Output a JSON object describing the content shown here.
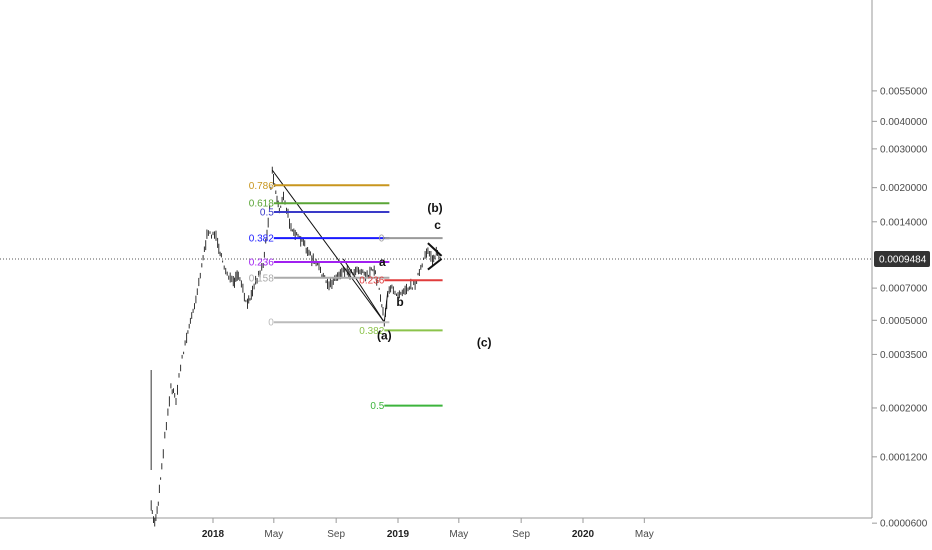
{
  "chart_data": {
    "type": "candlestick",
    "price_scale": "log",
    "current_price": "0.0009484",
    "colors": {
      "candles": "#333333",
      "crosshair": "#555555",
      "price_tag_bg": "#333333",
      "axis_line": "#9a9a9a"
    },
    "y_axis": {
      "ticks": [
        {
          "label": "0.0055000",
          "value": 0.0055
        },
        {
          "label": "0.0040000",
          "value": 0.004
        },
        {
          "label": "0.0030000",
          "value": 0.003
        },
        {
          "label": "0.0020000",
          "value": 0.002
        },
        {
          "label": "0.0014000",
          "value": 0.0014
        },
        {
          "label": "0.0007000",
          "value": 0.0007
        },
        {
          "label": "0.0005000",
          "value": 0.0005
        },
        {
          "label": "0.0003500",
          "value": 0.00035
        },
        {
          "label": "0.0002000",
          "value": 0.0002
        },
        {
          "label": "0.0001200",
          "value": 0.00012
        },
        {
          "label": "0.0000600",
          "value": 6e-05
        }
      ]
    },
    "x_axis": {
      "ticks": [
        {
          "label": "2018",
          "date": "2018-01",
          "year": true
        },
        {
          "label": "May",
          "date": "2018-05",
          "year": false
        },
        {
          "label": "Sep",
          "date": "2018-09",
          "year": false
        },
        {
          "label": "2019",
          "date": "2019-01",
          "year": true
        },
        {
          "label": "May",
          "date": "2019-05",
          "year": false
        },
        {
          "label": "Sep",
          "date": "2019-09",
          "year": false
        },
        {
          "label": "2020",
          "date": "2020-01",
          "year": true
        },
        {
          "label": "May",
          "date": "2020-05",
          "year": false
        }
      ]
    },
    "price_path": [
      [
        "2017-09-01",
        7e-05
      ],
      [
        "2017-09-08",
        6e-05
      ],
      [
        "2017-09-15",
        7.5e-05
      ],
      [
        "2017-09-22",
        0.00011
      ],
      [
        "2017-10-01",
        0.00017
      ],
      [
        "2017-10-10",
        0.00025
      ],
      [
        "2017-10-20",
        0.00022
      ],
      [
        "2017-11-01",
        0.00034
      ],
      [
        "2017-11-10",
        0.00042
      ],
      [
        "2017-11-20",
        0.00052
      ],
      [
        "2017-12-01",
        0.00068
      ],
      [
        "2017-12-10",
        0.0009
      ],
      [
        "2017-12-20",
        0.0012
      ],
      [
        "2018-01-01",
        0.00125
      ],
      [
        "2018-01-10",
        0.00115
      ],
      [
        "2018-01-20",
        0.0009
      ],
      [
        "2018-02-01",
        0.0008
      ],
      [
        "2018-02-10",
        0.00073
      ],
      [
        "2018-02-20",
        0.0008
      ],
      [
        "2018-03-01",
        0.00068
      ],
      [
        "2018-03-10",
        0.00058
      ],
      [
        "2018-03-20",
        0.0007
      ],
      [
        "2018-04-01",
        0.0008
      ],
      [
        "2018-04-10",
        0.0009
      ],
      [
        "2018-04-20",
        0.0014
      ],
      [
        "2018-04-28",
        0.0024
      ],
      [
        "2018-05-05",
        0.0019
      ],
      [
        "2018-05-12",
        0.0016
      ],
      [
        "2018-05-20",
        0.0018
      ],
      [
        "2018-06-01",
        0.0014
      ],
      [
        "2018-06-15",
        0.0012
      ],
      [
        "2018-07-01",
        0.0011
      ],
      [
        "2018-07-15",
        0.00095
      ],
      [
        "2018-08-01",
        0.00085
      ],
      [
        "2018-08-15",
        0.00072
      ],
      [
        "2018-09-01",
        0.00078
      ],
      [
        "2018-09-15",
        0.00085
      ],
      [
        "2018-10-01",
        0.00082
      ],
      [
        "2018-10-15",
        0.00086
      ],
      [
        "2018-11-01",
        0.0008
      ],
      [
        "2018-11-15",
        0.00085
      ],
      [
        "2018-11-25",
        0.0007
      ],
      [
        "2018-12-05",
        0.0005
      ],
      [
        "2018-12-12",
        0.00065
      ],
      [
        "2018-12-20",
        0.0007
      ],
      [
        "2019-01-01",
        0.00066
      ],
      [
        "2019-01-15",
        0.0007
      ],
      [
        "2019-02-01",
        0.00072
      ],
      [
        "2019-02-15",
        0.00085
      ],
      [
        "2019-03-01",
        0.00105
      ],
      [
        "2019-03-10",
        0.00095
      ],
      [
        "2019-03-20",
        0.00102
      ],
      [
        "2019-03-28",
        0.00092
      ]
    ],
    "fib_retracement_upper": [
      {
        "label": "0.786",
        "value": 0.00205,
        "color": "#c8961e"
      },
      {
        "label": "0.618",
        "value": 0.0017,
        "color": "#5aa536"
      },
      {
        "label": "0.5",
        "value": 0.00155,
        "color": "#3a3ac8"
      },
      {
        "label": "0.382",
        "value": 0.00118,
        "color": "#1a1aff"
      },
      {
        "label": "0.236",
        "value": 0.00092,
        "color": "#a020f0"
      },
      {
        "label": "0.158",
        "value": 0.00078,
        "color": "#aaaaaa"
      },
      {
        "label": "0",
        "value": 0.00049,
        "color": "#bbbbbb"
      }
    ],
    "fib_extension": [
      {
        "label": "0",
        "value": 0.00118,
        "color": "#9a9a9a"
      },
      {
        "label": "0.236",
        "value": 0.00076,
        "color": "#e03c3c"
      },
      {
        "label": "0.382",
        "value": 0.00045,
        "color": "#8bc34a"
      },
      {
        "label": "0.5",
        "value": 0.000205,
        "color": "#3cb43c"
      }
    ],
    "wave_labels": [
      "(b)",
      "c",
      "a",
      "b",
      "(a)",
      "(c)"
    ]
  }
}
